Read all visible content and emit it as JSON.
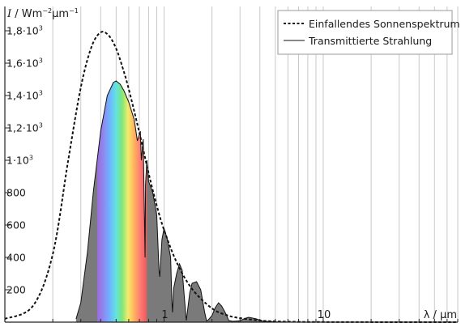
{
  "chart_data": {
    "type": "area",
    "x_scale": "log",
    "xlim": [
      0.1,
      70
    ],
    "ylim": [
      0,
      1950
    ],
    "grid": "vertical",
    "y_title_sym": "I",
    "y_title_unit": "/ Wm",
    "y_title_sup": "−2",
    "y_title_unit2": "µm",
    "y_title_sup2": "−1",
    "x_label_text": "λ / µm",
    "x_ticks": [
      {
        "value": 1,
        "label": "1"
      },
      {
        "value": 10,
        "label": "10"
      }
    ],
    "y_ticks": [
      {
        "value": 200,
        "label": "200",
        "sup": ""
      },
      {
        "value": 400,
        "label": "400",
        "sup": ""
      },
      {
        "value": 600,
        "label": "600",
        "sup": ""
      },
      {
        "value": 800,
        "label": "800",
        "sup": ""
      },
      {
        "value": 1000,
        "label": "1·10",
        "sup": "3"
      },
      {
        "value": 1200,
        "label": "1,2·10",
        "sup": "3"
      },
      {
        "value": 1400,
        "label": "1,4·10",
        "sup": "3"
      },
      {
        "value": 1600,
        "label": "1,6·10",
        "sup": "3"
      },
      {
        "value": 1800,
        "label": "1,8·10",
        "sup": "3"
      }
    ],
    "legend_position": "top-right",
    "series": [
      {
        "name": "Einfallendes Sonnenspektrum",
        "style": "dashed",
        "color": "#111111",
        "x": [
          0.1,
          0.15,
          0.2,
          0.25,
          0.3,
          0.35,
          0.4,
          0.45,
          0.5,
          0.55,
          0.6,
          0.7,
          0.8,
          0.9,
          1.0,
          1.2,
          1.5,
          2,
          2.5,
          3,
          4,
          5,
          7,
          10,
          20,
          70
        ],
        "y": [
          20,
          100,
          420,
          1000,
          1450,
          1700,
          1790,
          1770,
          1690,
          1570,
          1440,
          1170,
          920,
          720,
          570,
          370,
          205,
          85,
          42,
          25,
          10,
          5,
          2,
          1,
          0.3,
          0
        ]
      },
      {
        "name": "Transmittierte Strahlung",
        "style": "solid",
        "color": "#111111",
        "fill": "#7a7a7a",
        "x": [
          0.28,
          0.3,
          0.33,
          0.36,
          0.4,
          0.44,
          0.48,
          0.5,
          0.53,
          0.56,
          0.6,
          0.65,
          0.68,
          0.71,
          0.72,
          0.74,
          0.76,
          0.765,
          0.78,
          0.8,
          0.85,
          0.9,
          0.93,
          0.94,
          0.97,
          1.0,
          1.05,
          1.1,
          1.12,
          1.13,
          1.15,
          1.2,
          1.25,
          1.3,
          1.35,
          1.38,
          1.4,
          1.45,
          1.5,
          1.6,
          1.7,
          1.8,
          1.85,
          1.9,
          2.0,
          2.1,
          2.2,
          2.3,
          2.45,
          2.55,
          2.7,
          3.0,
          3.2,
          3.4,
          3.6,
          3.8,
          4.1,
          4.3,
          4.5,
          5.0,
          5.5,
          7.0
        ],
        "y": [
          20,
          120,
          430,
          810,
          1180,
          1400,
          1480,
          1490,
          1470,
          1430,
          1360,
          1250,
          1120,
          1180,
          1000,
          1130,
          400,
          850,
          1000,
          870,
          800,
          660,
          320,
          280,
          510,
          580,
          510,
          400,
          130,
          60,
          210,
          300,
          360,
          320,
          120,
          10,
          60,
          180,
          240,
          250,
          200,
          60,
          8,
          15,
          40,
          90,
          120,
          100,
          50,
          10,
          5,
          8,
          22,
          30,
          25,
          20,
          9,
          3,
          5,
          2,
          1,
          0
        ]
      }
    ],
    "spectrum_band": [
      0.38,
      0.78
    ]
  }
}
